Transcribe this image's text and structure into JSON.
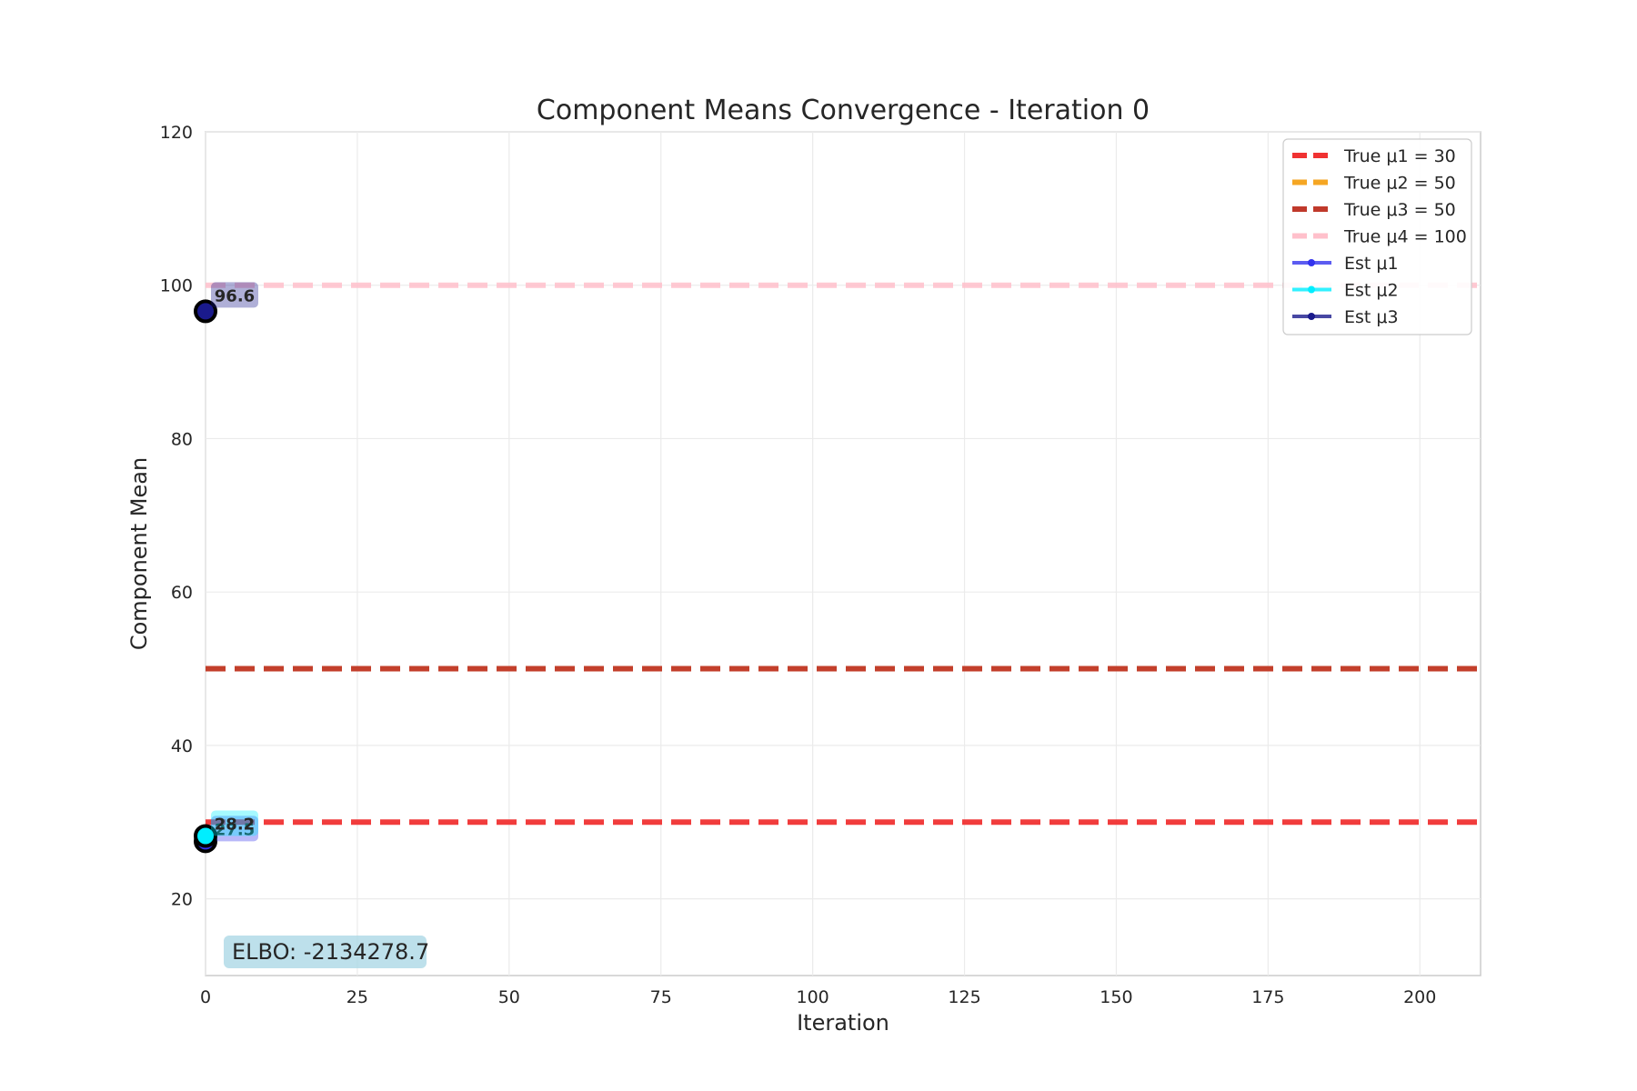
{
  "chart_data": {
    "type": "line",
    "title": "Component Means Convergence - Iteration 0",
    "xlabel": "Iteration",
    "ylabel": "Component Mean",
    "xlim": [
      0,
      210
    ],
    "ylim": [
      10,
      120
    ],
    "xticks": [
      0,
      25,
      50,
      75,
      100,
      125,
      150,
      175,
      200
    ],
    "yticks": [
      20,
      40,
      60,
      80,
      100,
      120
    ],
    "grid": true,
    "legend_position": "top-right",
    "true_means": [
      {
        "name": "True μ1 = 30",
        "value": 30,
        "color": "#f03232"
      },
      {
        "name": "True μ2 = 50",
        "value": 50,
        "color": "#f5a623"
      },
      {
        "name": "True μ3 = 50",
        "value": 50,
        "color": "#c0392b"
      },
      {
        "name": "True μ4 = 100",
        "value": 100,
        "color": "#ffc0cb"
      }
    ],
    "series": [
      {
        "name": "Est μ1",
        "color": "#3333ee",
        "x": [
          0
        ],
        "y": [
          27.5
        ],
        "label": "27.5"
      },
      {
        "name": "Est μ2",
        "color": "#00eeff",
        "x": [
          0
        ],
        "y": [
          28.2
        ],
        "label": "28.2"
      },
      {
        "name": "Est μ3",
        "color": "#1a1a8c",
        "x": [
          0
        ],
        "y": [
          96.6
        ],
        "label": "96.6"
      }
    ],
    "annotation": "ELBO: -2134278.7"
  }
}
